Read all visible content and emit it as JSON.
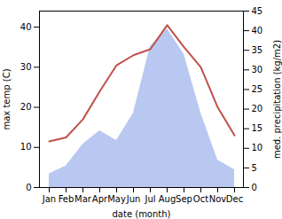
{
  "chart_data": {
    "type": "line",
    "categories": [
      "Jan",
      "Feb",
      "Mar",
      "Apr",
      "May",
      "Jun",
      "Jul",
      "Aug",
      "Sep",
      "Oct",
      "Nov",
      "Dec"
    ],
    "xlabel": "date (month)",
    "ylabel": "max temp (C)",
    "y2label": "med. precipitation (kg/m2)",
    "ylim": [
      0,
      44
    ],
    "yticks": [
      0,
      10,
      20,
      30,
      40
    ],
    "y2lim": [
      0,
      45
    ],
    "y2ticks": [
      0,
      5,
      10,
      15,
      20,
      25,
      30,
      35,
      40,
      45
    ],
    "series": [
      {
        "type": "area",
        "axis": "y2",
        "color": "#b8c8f0",
        "values": [
          3.5,
          5.5,
          11.0,
          14.5,
          12.0,
          19.0,
          36.0,
          40.5,
          34.0,
          19.0,
          7.0,
          4.5
        ]
      },
      {
        "type": "line",
        "color": "#c0504d",
        "values": [
          11.5,
          12.5,
          17.0,
          24.0,
          30.5,
          33.0,
          34.5,
          40.5,
          35.0,
          30.0,
          20.0,
          13.0
        ]
      }
    ]
  }
}
